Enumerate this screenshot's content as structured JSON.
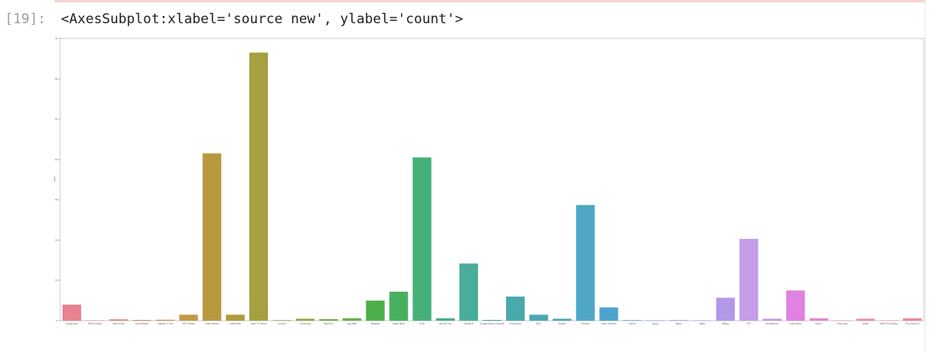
{
  "notebook": {
    "prompt": "[19]:",
    "output_text": "<AxesSubplot:xlabel='source new', ylabel='count'>"
  },
  "colors": {
    "top_rule": "#f7d4d4",
    "prompt": "#9e9e9e",
    "axes_frame": "#cccccc"
  },
  "chart_data": {
    "type": "bar",
    "title": "",
    "xlabel": "source new",
    "ylabel": "count",
    "ylim": [
      0,
      70
    ],
    "yticks": [
      0,
      10,
      20,
      30,
      40,
      50,
      60,
      70
    ],
    "grid": false,
    "categories": [
      "Google Lens",
      "Photo Gallery",
      "Search Sph",
      "Social Media",
      "Chapter 3 Com",
      "WCT Tweets",
      "Video Review",
      "Insta Posts",
      "Video YT Shorts",
      "Android",
      "Credit App",
      "Mobile UI",
      "Low Rate",
      "Website",
      "Apple Store",
      "Knife",
      "Book Fir Op",
      "Reddit B",
      "Google Search Camera",
      "Ansol Brick",
      "BCG",
      "Spotify",
      "Printers",
      "Other Fondant",
      "Grandl",
      "Lyrics",
      "Radio",
      "News",
      "Twitter",
      "ATT",
      "Smartphone",
      "Instructions",
      "Flash F",
      "Music App",
      "Email",
      "Other Full Version",
      "Tiny Sections"
    ],
    "values": [
      4.0,
      0.1,
      0.35,
      0.2,
      0.25,
      1.5,
      41.5,
      1.5,
      66.5,
      0.15,
      0.5,
      0.4,
      0.6,
      5.0,
      7.2,
      40.5,
      0.6,
      14.2,
      0.2,
      6.0,
      1.5,
      0.5,
      28.7,
      3.3,
      0.15,
      0.1,
      0.15,
      0.1,
      5.7,
      20.3,
      0.5,
      7.5,
      0.6,
      0.1,
      0.5,
      0.1,
      0.6
    ],
    "bar_colors": [
      "#e8838f",
      "#e8838f",
      "#e08a78",
      "#d69468",
      "#cc9b58",
      "#c49a45",
      "#b9993e",
      "#b09d3e",
      "#a5a040",
      "#98a542",
      "#8aa944",
      "#79ad45",
      "#64b046",
      "#4daf49",
      "#47b05f",
      "#45b179",
      "#46b08c",
      "#48ad9b",
      "#49aba4",
      "#4aa9ab",
      "#4ba8b3",
      "#4ca7bb",
      "#4da7c5",
      "#4ea3cf",
      "#5c9fd6",
      "#7b9ee0",
      "#969ce6",
      "#a69ae9",
      "#b398ea",
      "#c49ce8",
      "#cd95e6",
      "#e181e1",
      "#e587d2",
      "#e88bc2",
      "#e88cb4",
      "#e88ba5",
      "#e98a98"
    ]
  }
}
